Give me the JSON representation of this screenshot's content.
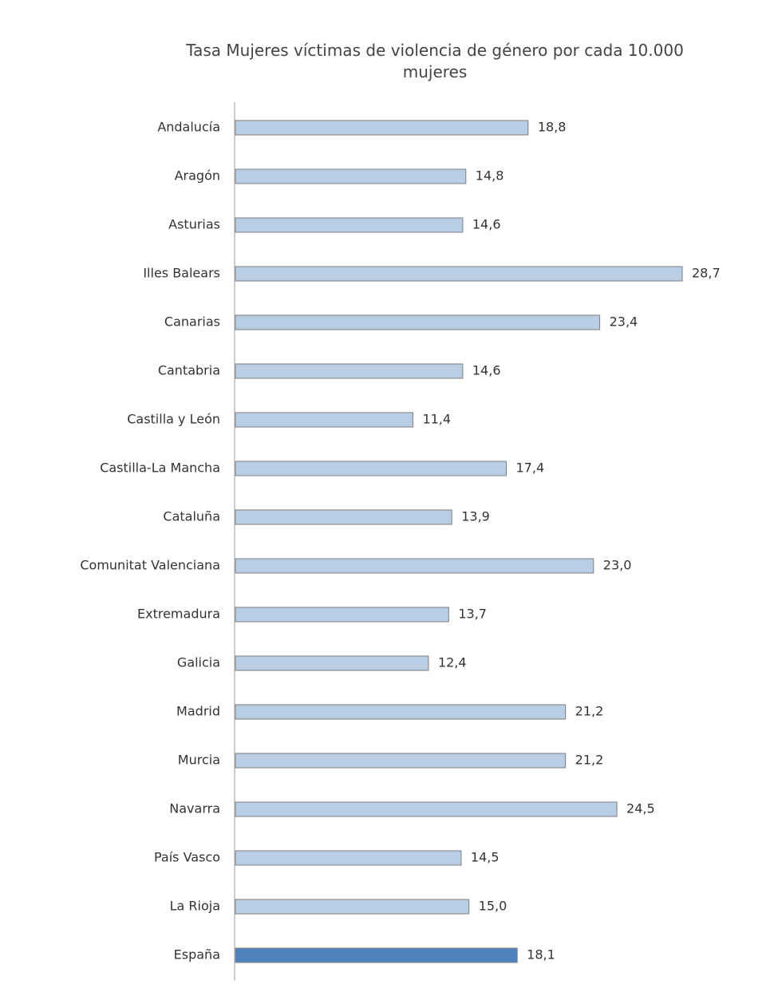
{
  "chart_data": {
    "type": "barh",
    "title": "Tasa Mujeres víctimas de violencia de género por cada 10.000 mujeres",
    "categories": [
      "Andalucía",
      "Aragón",
      "Asturias",
      "Illes Balears",
      "Canarias",
      "Cantabria",
      "Castilla y León",
      "Castilla-La Mancha",
      "Cataluña",
      "Comunitat Valenciana",
      "Extremadura",
      "Galicia",
      "Madrid",
      "Murcia",
      "Navarra",
      "País Vasco",
      "La Rioja",
      "España"
    ],
    "values": [
      18.8,
      14.8,
      14.6,
      28.7,
      23.4,
      14.6,
      11.4,
      17.4,
      13.9,
      23.0,
      13.7,
      12.4,
      21.2,
      21.2,
      24.5,
      14.5,
      15.0,
      18.1
    ],
    "value_labels": [
      "18,8",
      "14,8",
      "14,6",
      "28,7",
      "23,4",
      "14,6",
      "11,4",
      "17,4",
      "13,9",
      "23,0",
      "13,7",
      "12,4",
      "21,2",
      "21,2",
      "24,5",
      "14,5",
      "15,0",
      "18,1"
    ],
    "colors": [
      "#b9cde5",
      "#b9cde5",
      "#b9cde5",
      "#b9cde5",
      "#b9cde5",
      "#b9cde5",
      "#b9cde5",
      "#b9cde5",
      "#b9cde5",
      "#b9cde5",
      "#b9cde5",
      "#b9cde5",
      "#b9cde5",
      "#b9cde5",
      "#b9cde5",
      "#b9cde5",
      "#b9cde5",
      "#4f81bd"
    ]
  }
}
